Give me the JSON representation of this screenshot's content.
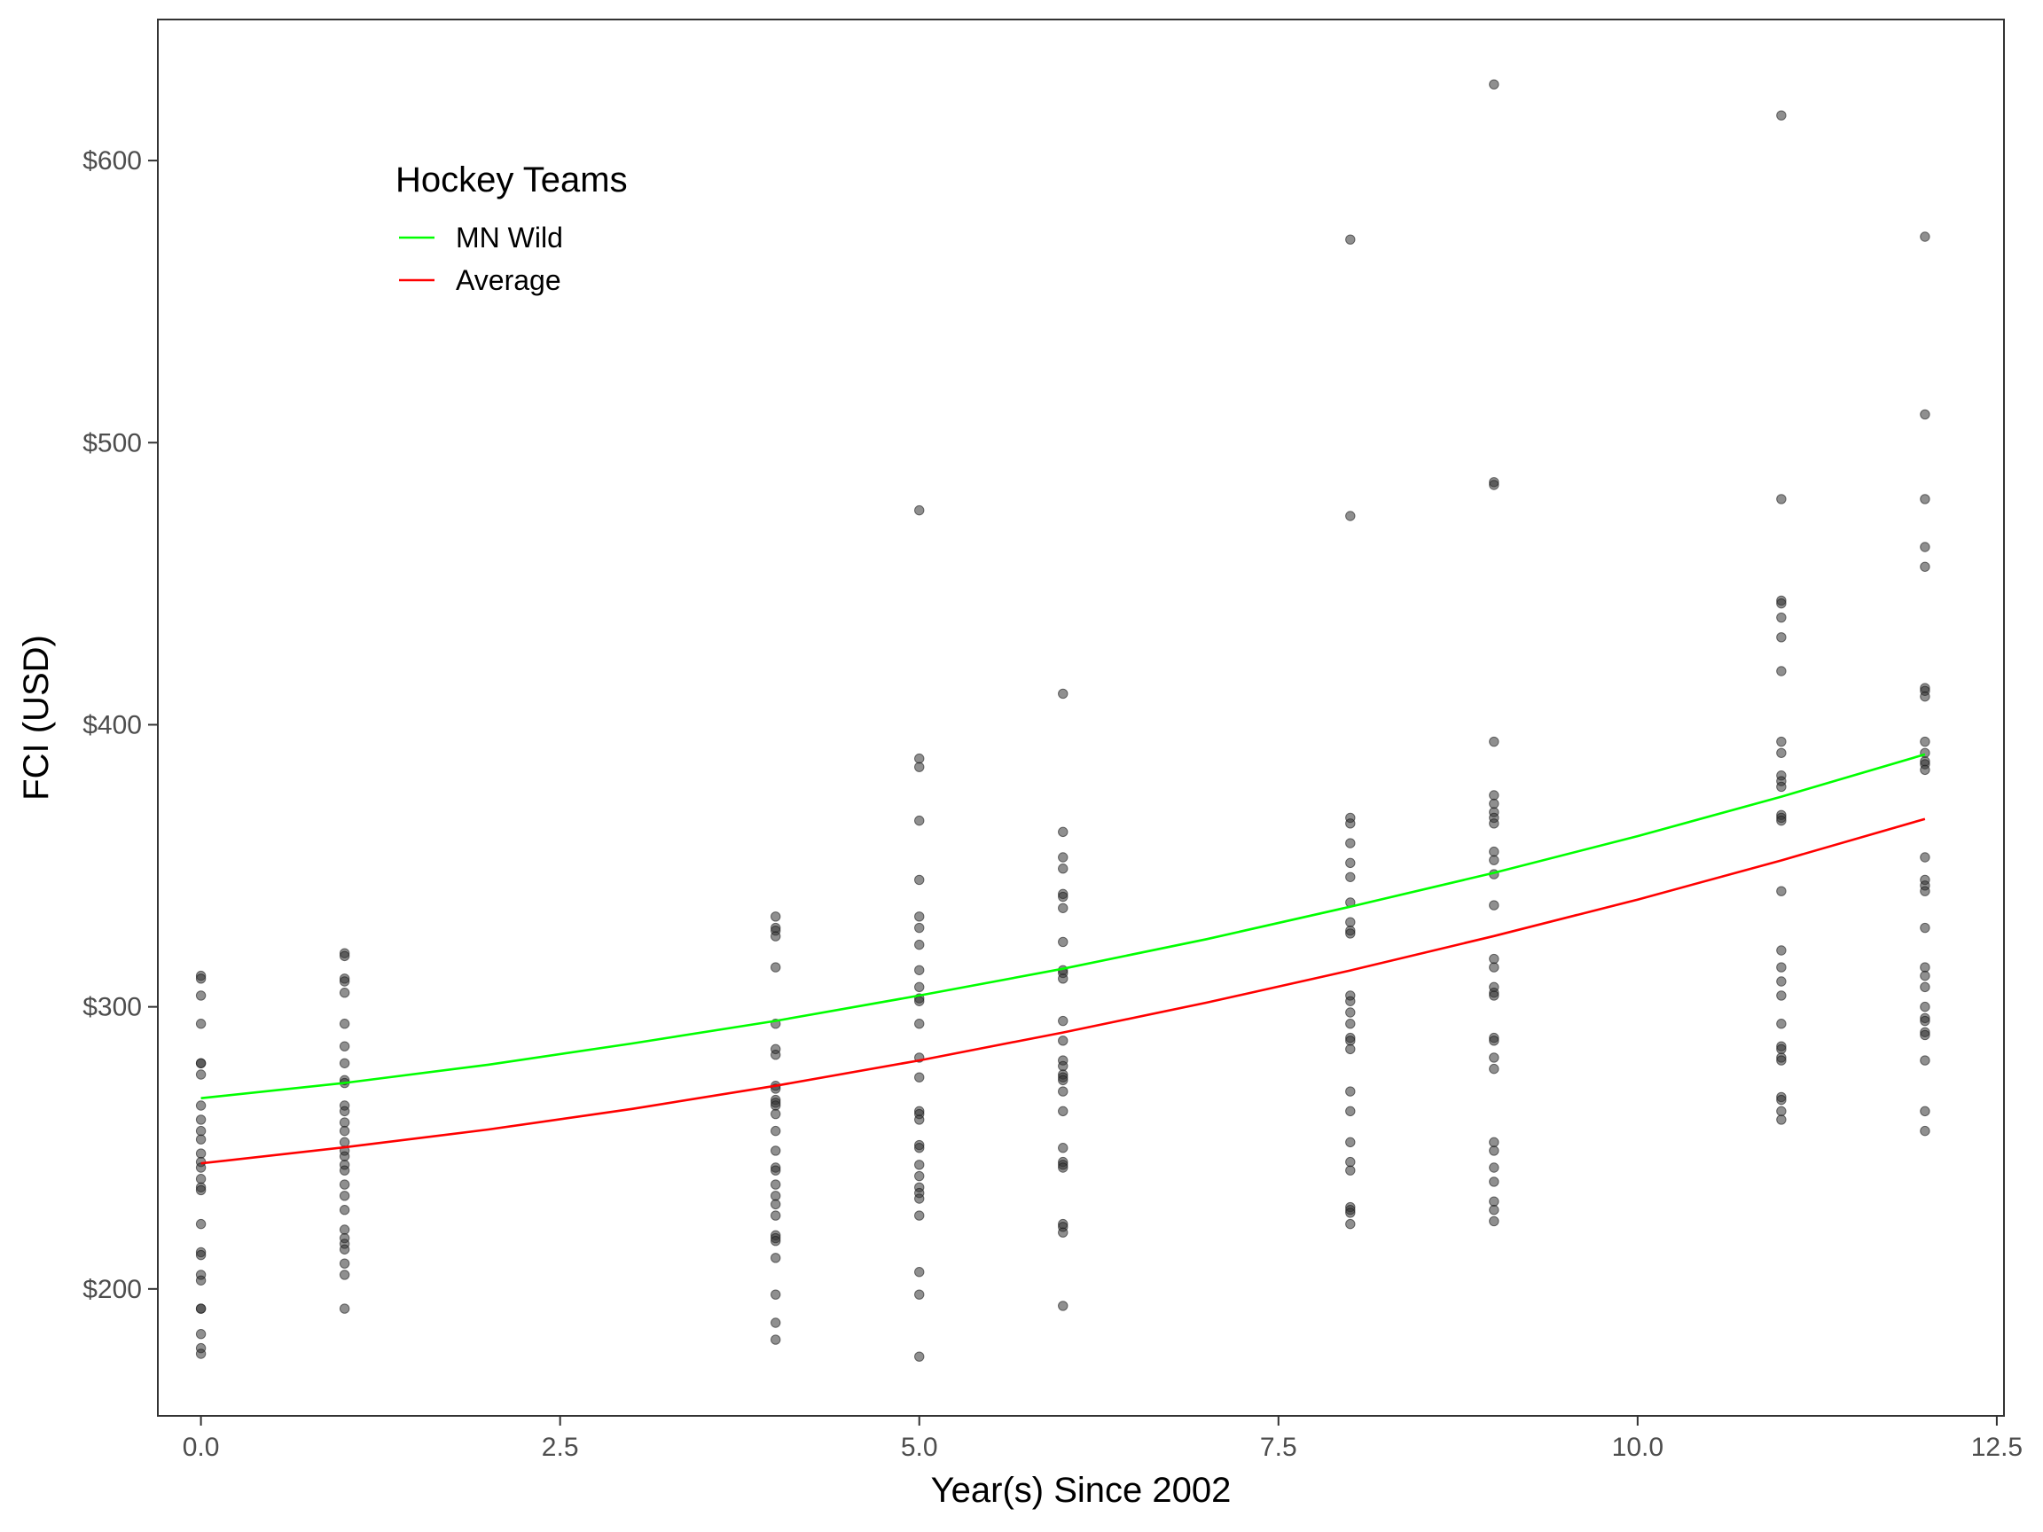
{
  "chart_data": {
    "type": "scatter",
    "title": "",
    "xlabel": "Year(s) Since 2002",
    "ylabel": "FCI (USD)",
    "xlim": [
      -0.3,
      12.55
    ],
    "ylim": [
      155,
      650
    ],
    "x_ticks": [
      0,
      2.5,
      5,
      7.5,
      10,
      12.5
    ],
    "x_tick_labels": [
      "0.0",
      "2.5",
      "5.0",
      "7.5",
      "10.0",
      "12.5"
    ],
    "y_ticks": [
      200,
      300,
      400,
      500,
      600
    ],
    "y_tick_labels": [
      "$200",
      "$300",
      "$400",
      "$500",
      "$600"
    ],
    "grid": false,
    "legend": {
      "title": "Hockey Teams",
      "position": "top-left",
      "entries": [
        {
          "name": "MN Wild",
          "color": "#00ff00"
        },
        {
          "name": "Average",
          "color": "#ff0000"
        }
      ]
    },
    "point_color": "#333333",
    "points": [
      {
        "x": 0,
        "y": [
          311,
          310,
          304,
          294,
          280,
          280,
          276,
          265,
          260,
          256,
          253,
          248,
          245,
          243,
          239,
          236,
          235,
          223,
          213,
          212,
          205,
          203,
          193,
          193,
          184,
          179,
          177
        ]
      },
      {
        "x": 1,
        "y": [
          319,
          318,
          310,
          309,
          305,
          294,
          286,
          280,
          274,
          273,
          265,
          263,
          259,
          256,
          252,
          249,
          247,
          244,
          242,
          237,
          233,
          228,
          221,
          218,
          216,
          214,
          209,
          205,
          193
        ]
      },
      {
        "x": 4,
        "y": [
          332,
          328,
          327,
          325,
          314,
          294,
          285,
          283,
          272,
          271,
          267,
          266,
          265,
          262,
          256,
          249,
          243,
          242,
          237,
          233,
          230,
          226,
          219,
          218,
          217,
          211,
          198,
          188,
          182
        ]
      },
      {
        "x": 5,
        "y": [
          476,
          388,
          385,
          366,
          345,
          332,
          328,
          322,
          313,
          307,
          303,
          302,
          294,
          282,
          275,
          263,
          262,
          260,
          251,
          250,
          244,
          240,
          236,
          234,
          232,
          226,
          206,
          198,
          176
        ]
      },
      {
        "x": 6,
        "y": [
          411,
          362,
          353,
          349,
          340,
          339,
          335,
          323,
          313,
          312,
          310,
          295,
          288,
          281,
          279,
          276,
          275,
          274,
          270,
          263,
          250,
          245,
          244,
          243,
          223,
          222,
          220,
          194
        ]
      },
      {
        "x": 8,
        "y": [
          572,
          474,
          367,
          365,
          358,
          351,
          346,
          337,
          330,
          327,
          326,
          304,
          302,
          298,
          294,
          289,
          288,
          285,
          270,
          263,
          252,
          245,
          242,
          229,
          228,
          227,
          223
        ]
      },
      {
        "x": 9,
        "y": [
          627,
          486,
          485,
          394,
          375,
          372,
          369,
          367,
          365,
          355,
          352,
          347,
          336,
          317,
          314,
          307,
          305,
          304,
          289,
          288,
          282,
          278,
          252,
          249,
          243,
          238,
          231,
          228,
          224
        ]
      },
      {
        "x": 11,
        "y": [
          616,
          480,
          444,
          443,
          438,
          431,
          419,
          394,
          390,
          382,
          380,
          378,
          368,
          367,
          366,
          341,
          320,
          314,
          309,
          304,
          294,
          286,
          285,
          282,
          281,
          268,
          267,
          263,
          260
        ]
      },
      {
        "x": 12,
        "y": [
          573,
          510,
          480,
          463,
          456,
          413,
          412,
          410,
          394,
          390,
          387,
          386,
          384,
          353,
          345,
          343,
          341,
          328,
          314,
          311,
          307,
          300,
          296,
          295,
          291,
          290,
          281,
          263,
          256
        ]
      }
    ],
    "series": [
      {
        "name": "MN Wild",
        "color": "#00ff00",
        "x": [
          0,
          1,
          2,
          3,
          4,
          5,
          6,
          7,
          8,
          9,
          10,
          11,
          12
        ],
        "y": [
          267.6,
          273.0,
          279.5,
          287.0,
          295.0,
          304.0,
          313.5,
          324.0,
          335.5,
          347.5,
          360.5,
          374.5,
          389.5
        ]
      },
      {
        "name": "Average",
        "color": "#ff0000",
        "x": [
          0,
          1,
          2,
          3,
          4,
          5,
          6,
          7,
          8,
          9,
          10,
          11,
          12
        ],
        "y": [
          244.5,
          250.2,
          256.5,
          263.8,
          272.0,
          281.0,
          290.9,
          301.5,
          312.9,
          325.1,
          338.0,
          351.9,
          366.6
        ]
      }
    ]
  }
}
